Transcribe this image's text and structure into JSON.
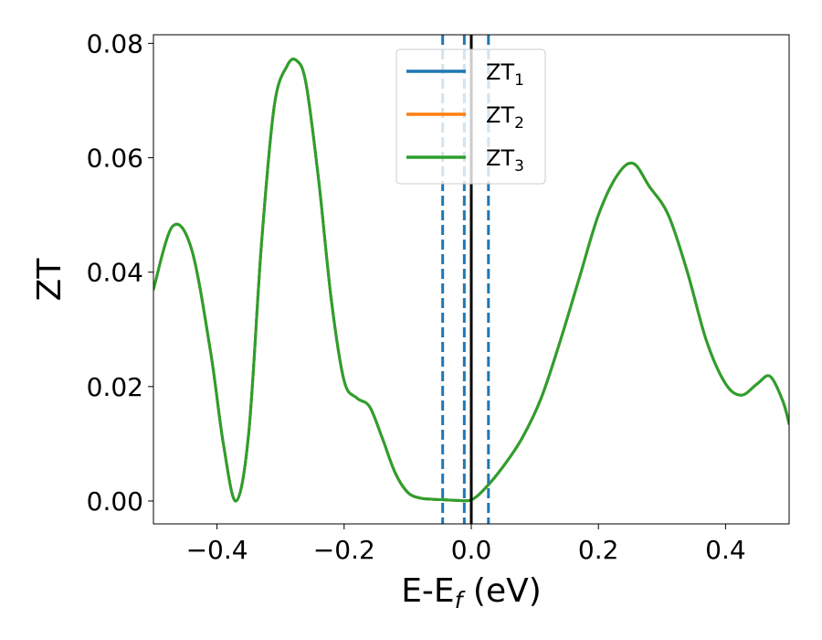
{
  "chart_data": {
    "type": "line",
    "xlabel": "E-E",
    "xlabel_sub": "f",
    "xlabel_unit": " (eV)",
    "ylabel": "ZT",
    "xlim": [
      -0.5,
      0.5
    ],
    "ylim": [
      -0.004,
      0.0815
    ],
    "xticks": [
      -0.4,
      -0.2,
      0.0,
      0.2,
      0.4
    ],
    "xtick_labels": [
      "−0.4",
      "−0.2",
      "0.0",
      "0.2",
      "0.4"
    ],
    "yticks": [
      0.0,
      0.02,
      0.04,
      0.06,
      0.08
    ],
    "ytick_labels": [
      "0.00",
      "0.02",
      "0.04",
      "0.06",
      "0.08"
    ],
    "legend_position": "upper center",
    "series": [
      {
        "name": "ZT1",
        "base": "ZT",
        "sub": "1",
        "color": "#1f77b4",
        "x": [
          -0.5,
          -0.47,
          -0.44,
          -0.41,
          -0.39,
          -0.37,
          -0.35,
          -0.33,
          -0.31,
          -0.29,
          -0.275,
          -0.26,
          -0.24,
          -0.22,
          -0.2,
          -0.18,
          -0.16,
          -0.14,
          -0.12,
          -0.1,
          -0.08,
          -0.06,
          -0.04,
          -0.02,
          0.0,
          0.02,
          0.05,
          0.08,
          0.11,
          0.14,
          0.17,
          0.2,
          0.23,
          0.255,
          0.28,
          0.31,
          0.34,
          0.37,
          0.4,
          0.425,
          0.45,
          0.47,
          0.49,
          0.5
        ],
        "y": [
          0.037,
          0.048,
          0.044,
          0.026,
          0.01,
          0.0,
          0.012,
          0.045,
          0.069,
          0.076,
          0.077,
          0.073,
          0.056,
          0.035,
          0.021,
          0.018,
          0.0165,
          0.011,
          0.005,
          0.0015,
          0.0005,
          0.0003,
          0.0002,
          0.0001,
          0.0002,
          0.002,
          0.006,
          0.011,
          0.018,
          0.028,
          0.039,
          0.05,
          0.057,
          0.059,
          0.055,
          0.05,
          0.04,
          0.028,
          0.0205,
          0.0185,
          0.0205,
          0.0218,
          0.0175,
          0.0135
        ]
      },
      {
        "name": "ZT2",
        "base": "ZT",
        "sub": "2",
        "color": "#ff7f0e",
        "x": [
          -0.5,
          -0.47,
          -0.44,
          -0.41,
          -0.39,
          -0.37,
          -0.35,
          -0.33,
          -0.31,
          -0.29,
          -0.275,
          -0.26,
          -0.24,
          -0.22,
          -0.2,
          -0.18,
          -0.16,
          -0.14,
          -0.12,
          -0.1,
          -0.08,
          -0.06,
          -0.04,
          -0.02,
          0.0,
          0.02,
          0.05,
          0.08,
          0.11,
          0.14,
          0.17,
          0.2,
          0.23,
          0.255,
          0.28,
          0.31,
          0.34,
          0.37,
          0.4,
          0.425,
          0.45,
          0.47,
          0.49,
          0.5
        ],
        "y": [
          0.037,
          0.048,
          0.044,
          0.026,
          0.01,
          0.0,
          0.012,
          0.045,
          0.069,
          0.076,
          0.077,
          0.073,
          0.056,
          0.035,
          0.021,
          0.018,
          0.0165,
          0.011,
          0.005,
          0.0015,
          0.0005,
          0.0003,
          0.0002,
          0.0001,
          0.0002,
          0.002,
          0.006,
          0.011,
          0.018,
          0.028,
          0.039,
          0.05,
          0.057,
          0.059,
          0.055,
          0.05,
          0.04,
          0.028,
          0.0205,
          0.0185,
          0.0205,
          0.0218,
          0.0175,
          0.0135
        ]
      },
      {
        "name": "ZT3",
        "base": "ZT",
        "sub": "3",
        "color": "#2ca02c",
        "x": [
          -0.5,
          -0.47,
          -0.44,
          -0.41,
          -0.39,
          -0.37,
          -0.35,
          -0.33,
          -0.31,
          -0.29,
          -0.275,
          -0.26,
          -0.24,
          -0.22,
          -0.2,
          -0.18,
          -0.16,
          -0.14,
          -0.12,
          -0.1,
          -0.08,
          -0.06,
          -0.04,
          -0.02,
          0.0,
          0.02,
          0.05,
          0.08,
          0.11,
          0.14,
          0.17,
          0.2,
          0.23,
          0.255,
          0.28,
          0.31,
          0.34,
          0.37,
          0.4,
          0.425,
          0.45,
          0.47,
          0.49,
          0.5
        ],
        "y": [
          0.037,
          0.048,
          0.044,
          0.026,
          0.01,
          0.0,
          0.012,
          0.045,
          0.069,
          0.076,
          0.077,
          0.073,
          0.056,
          0.035,
          0.021,
          0.018,
          0.0165,
          0.011,
          0.005,
          0.0015,
          0.0005,
          0.0003,
          0.0002,
          0.0001,
          0.0002,
          0.002,
          0.006,
          0.011,
          0.018,
          0.028,
          0.039,
          0.05,
          0.057,
          0.059,
          0.055,
          0.05,
          0.04,
          0.028,
          0.0205,
          0.0185,
          0.0205,
          0.0218,
          0.0175,
          0.0135
        ]
      }
    ],
    "vertical_lines": [
      {
        "x": 0.0,
        "style": "solid",
        "color": "#000000"
      },
      {
        "x": -0.045,
        "style": "dashed",
        "color": "#1f77b4"
      },
      {
        "x": -0.011,
        "style": "dashed",
        "color": "#1f77b4"
      },
      {
        "x": 0.027,
        "style": "dashed",
        "color": "#1f77b4"
      }
    ]
  }
}
